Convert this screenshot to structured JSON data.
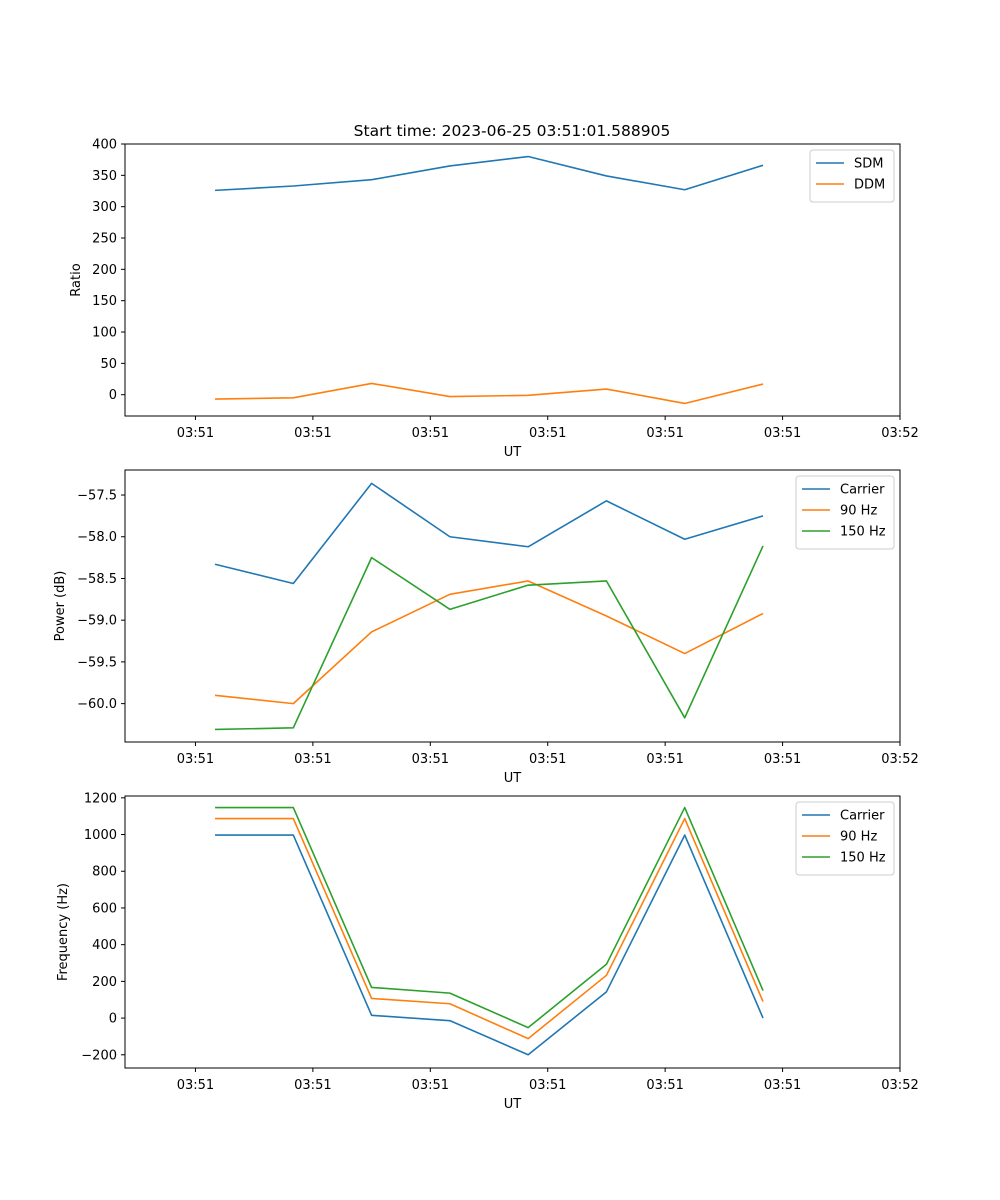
{
  "figure_title": "Start time: 2023-06-25 03:51:01.588905",
  "colors": {
    "blue": "#1f77b4",
    "orange": "#ff7f0e",
    "green": "#2ca02c"
  },
  "chart_data": [
    {
      "type": "line",
      "title": "Start time: 2023-06-25 03:51:01.588905",
      "xlabel": "UT",
      "ylabel": "Ratio",
      "x": [
        1,
        2,
        3,
        4,
        5,
        6,
        7,
        8
      ],
      "x_ticks": [
        0.75,
        2.25,
        3.75,
        5.25,
        6.75,
        8.25,
        9.75
      ],
      "x_tick_labels": [
        "03:51",
        "03:51",
        "03:51",
        "03:51",
        "03:51",
        "03:51",
        "03:52"
      ],
      "xlim": [
        -0.15,
        9.75
      ],
      "ylim": [
        -34,
        400
      ],
      "y_ticks": [
        0,
        50,
        100,
        150,
        200,
        250,
        300,
        350,
        400
      ],
      "y_tick_labels": [
        "0",
        "50",
        "100",
        "150",
        "200",
        "250",
        "300",
        "350",
        "400"
      ],
      "legend_position": "top-right",
      "series": [
        {
          "name": "SDM",
          "color": "#1f77b4",
          "values": [
            326,
            333,
            343,
            365,
            380,
            349,
            327,
            366
          ]
        },
        {
          "name": "DDM",
          "color": "#ff7f0e",
          "values": [
            -7,
            -5,
            18,
            -3,
            -1,
            9,
            -14,
            17
          ]
        }
      ]
    },
    {
      "type": "line",
      "xlabel": "UT",
      "ylabel": "Power (dB)",
      "x": [
        1,
        2,
        3,
        4,
        5,
        6,
        7,
        8
      ],
      "x_ticks": [
        0.75,
        2.25,
        3.75,
        5.25,
        6.75,
        8.25,
        9.75
      ],
      "x_tick_labels": [
        "03:51",
        "03:51",
        "03:51",
        "03:51",
        "03:51",
        "03:51",
        "03:52"
      ],
      "xlim": [
        -0.15,
        9.75
      ],
      "ylim": [
        -60.46,
        -57.2
      ],
      "y_ticks": [
        -57.5,
        -58.0,
        -58.5,
        -59.0,
        -59.5,
        -60.0
      ],
      "y_tick_labels": [
        "−57.5",
        "−58.0",
        "−58.5",
        "−59.0",
        "−59.5",
        "−60.0"
      ],
      "legend_position": "top-right",
      "series": [
        {
          "name": "Carrier",
          "color": "#1f77b4",
          "values": [
            -58.33,
            -58.56,
            -57.36,
            -58.0,
            -58.12,
            -57.57,
            -58.03,
            -57.75
          ]
        },
        {
          "name": "90 Hz",
          "color": "#ff7f0e",
          "values": [
            -59.9,
            -60.0,
            -59.14,
            -58.69,
            -58.53,
            -58.95,
            -59.4,
            -58.92
          ]
        },
        {
          "name": "150 Hz",
          "color": "#2ca02c",
          "values": [
            -60.31,
            -60.29,
            -58.25,
            -58.87,
            -58.58,
            -58.53,
            -60.17,
            -58.11
          ]
        }
      ]
    },
    {
      "type": "line",
      "xlabel": "UT",
      "ylabel": "Frequency (Hz)",
      "x": [
        1,
        2,
        3,
        4,
        5,
        6,
        7,
        8
      ],
      "x_ticks": [
        0.75,
        2.25,
        3.75,
        5.25,
        6.75,
        8.25,
        9.75
      ],
      "x_tick_labels": [
        "03:51",
        "03:51",
        "03:51",
        "03:51",
        "03:51",
        "03:51",
        "03:52"
      ],
      "xlim": [
        -0.15,
        9.75
      ],
      "ylim": [
        -272,
        1210
      ],
      "y_ticks": [
        -200,
        0,
        200,
        400,
        600,
        800,
        1000,
        1200
      ],
      "y_tick_labels": [
        "−200",
        "0",
        "200",
        "400",
        "600",
        "800",
        "1000",
        "1200"
      ],
      "legend_position": "top-right",
      "series": [
        {
          "name": "Carrier",
          "color": "#1f77b4",
          "values": [
            997,
            997,
            15,
            -14,
            -200,
            143,
            997,
            0
          ]
        },
        {
          "name": "90 Hz",
          "color": "#ff7f0e",
          "values": [
            1087,
            1087,
            107,
            78,
            -112,
            233,
            1087,
            90
          ]
        },
        {
          "name": "150 Hz",
          "color": "#2ca02c",
          "values": [
            1147,
            1147,
            167,
            136,
            -52,
            293,
            1147,
            150
          ]
        }
      ]
    }
  ]
}
